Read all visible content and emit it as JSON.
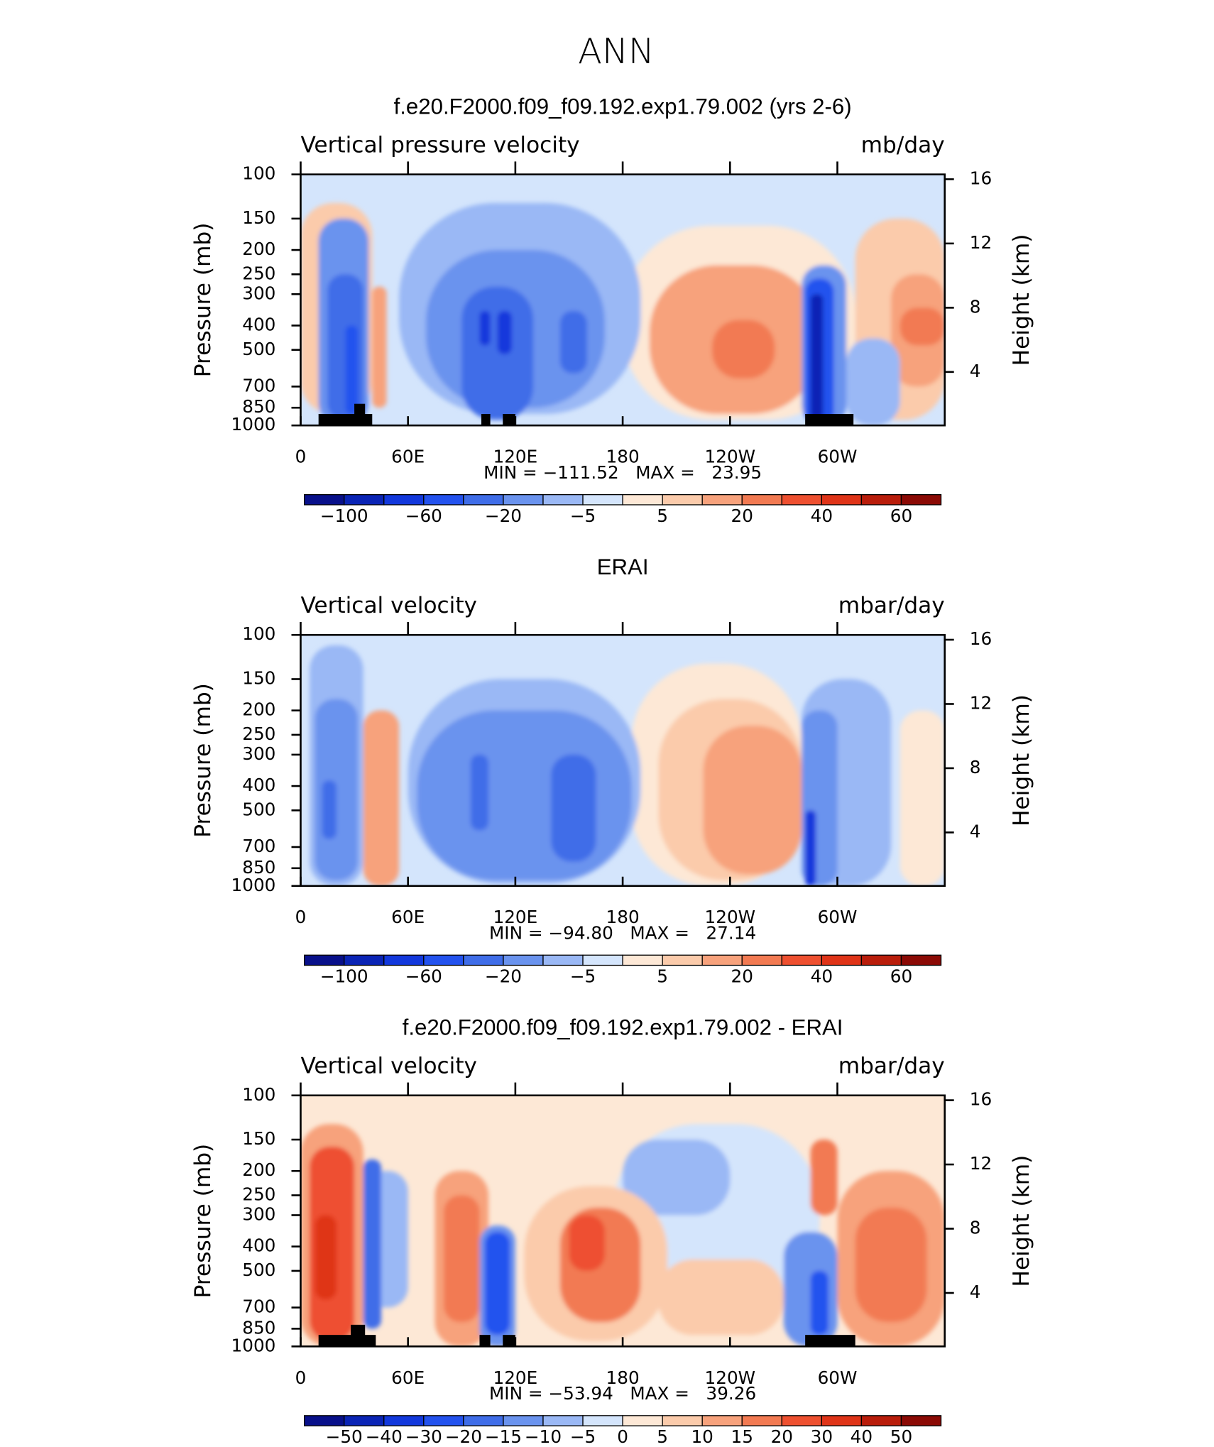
{
  "figure_title": "ANN",
  "chart_data": [
    {
      "type": "contour",
      "title": "f.e20.F2000.f09_f09.192.exp1.79.002 (yrs 2-6)",
      "left_label": "Vertical pressure velocity",
      "right_label": "mb/day",
      "ylabel": "Pressure (mb)",
      "y2label": "Height (km)",
      "xlim": [
        0,
        360
      ],
      "xticks": [
        0,
        {
          "value": 60,
          "label": "60E"
        },
        {
          "value": 120,
          "label": "120E"
        },
        180,
        {
          "value": 240,
          "label": "120W"
        },
        {
          "value": 300,
          "label": "60W"
        }
      ],
      "ylim": [
        1000,
        100
      ],
      "log_y": true,
      "yticks": [
        100,
        150,
        200,
        250,
        300,
        400,
        500,
        700,
        850,
        1000
      ],
      "y2lim": [
        0.67,
        16.3
      ],
      "y2ticks": [
        16,
        12,
        8,
        4
      ],
      "stats": "MIN = −111.52   MAX =   23.95",
      "colorbar": {
        "colors": [
          "#08108a",
          "#0a24b5",
          "#1238dc",
          "#2352ee",
          "#3f6de8",
          "#6a93ee",
          "#9ab8f5",
          "#d4e5fc",
          "#fde8d6",
          "#fbcbab",
          "#f7a27c",
          "#f27a52",
          "#ee5030",
          "#df3418",
          "#b91d0b",
          "#8b0a05"
        ],
        "labels": [
          "−100",
          "−60",
          "−20",
          "−5",
          "5",
          "20",
          "40",
          "60"
        ]
      }
    },
    {
      "type": "contour",
      "title": "ERAI",
      "left_label": "Vertical velocity",
      "right_label": "mbar/day",
      "ylabel": "Pressure (mb)",
      "y2label": "Height (km)",
      "xlim": [
        0,
        360
      ],
      "xticks": [
        0,
        {
          "value": 60,
          "label": "60E"
        },
        {
          "value": 120,
          "label": "120E"
        },
        180,
        {
          "value": 240,
          "label": "120W"
        },
        {
          "value": 300,
          "label": "60W"
        }
      ],
      "ylim": [
        1000,
        100
      ],
      "log_y": true,
      "yticks": [
        100,
        150,
        200,
        250,
        300,
        400,
        500,
        700,
        850,
        1000
      ],
      "y2lim": [
        0.67,
        16.3
      ],
      "y2ticks": [
        16,
        12,
        8,
        4
      ],
      "stats": "MIN = −94.80   MAX =   27.14",
      "colorbar": {
        "colors": [
          "#08108a",
          "#0a24b5",
          "#1238dc",
          "#2352ee",
          "#3f6de8",
          "#6a93ee",
          "#9ab8f5",
          "#d4e5fc",
          "#fde8d6",
          "#fbcbab",
          "#f7a27c",
          "#f27a52",
          "#ee5030",
          "#df3418",
          "#b91d0b",
          "#8b0a05"
        ],
        "labels": [
          "−100",
          "−60",
          "−20",
          "−5",
          "5",
          "20",
          "40",
          "60"
        ]
      }
    },
    {
      "type": "contour",
      "title": "f.e20.F2000.f09_f09.192.exp1.79.002 - ERAI",
      "left_label": "Vertical velocity",
      "right_label": "mbar/day",
      "ylabel": "Pressure (mb)",
      "y2label": "Height (km)",
      "xlim": [
        0,
        360
      ],
      "xticks": [
        0,
        {
          "value": 60,
          "label": "60E"
        },
        {
          "value": 120,
          "label": "120E"
        },
        180,
        {
          "value": 240,
          "label": "120W"
        },
        {
          "value": 300,
          "label": "60W"
        }
      ],
      "ylim": [
        1000,
        100
      ],
      "log_y": true,
      "yticks": [
        100,
        150,
        200,
        250,
        300,
        400,
        500,
        700,
        850,
        1000
      ],
      "y2lim": [
        0.67,
        16.3
      ],
      "y2ticks": [
        16,
        12,
        8,
        4
      ],
      "stats": "MIN = −53.94   MAX =   39.26",
      "colorbar": {
        "colors": [
          "#08108a",
          "#0a24b5",
          "#1238dc",
          "#2352ee",
          "#3f6de8",
          "#6a93ee",
          "#9ab8f5",
          "#d4e5fc",
          "#fde8d6",
          "#fbcbab",
          "#f7a27c",
          "#f27a52",
          "#ee5030",
          "#df3418",
          "#b91d0b",
          "#8b0a05"
        ],
        "labels": [
          "−50",
          "−40",
          "−30",
          "−20",
          "−15",
          "−10",
          "−5",
          "0",
          "5",
          "10",
          "15",
          "20",
          "30",
          "40",
          "50"
        ]
      }
    }
  ]
}
